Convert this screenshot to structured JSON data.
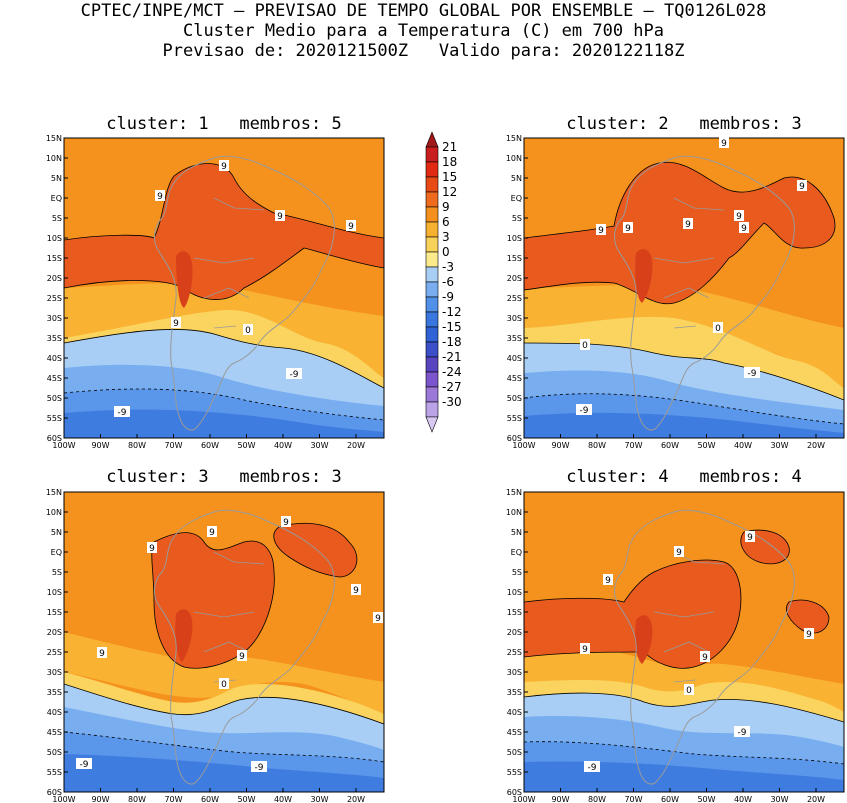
{
  "header": {
    "line1": "CPTEC/INPE/MCT – PREVISAO DE TEMPO GLOBAL POR ENSEMBLE – TQ0126L028",
    "line2": "Cluster Medio para a Temperatura (C) em 700 hPa",
    "line3": "Previsao de: 2020121500Z   Valido para: 2020122118Z"
  },
  "axes": {
    "lat_labels": [
      "15N",
      "10N",
      "5N",
      "EQ",
      "5S",
      "10S",
      "15S",
      "20S",
      "25S",
      "30S",
      "35S",
      "40S",
      "45S",
      "50S",
      "55S",
      "60S"
    ],
    "lon_labels": [
      "100W",
      "90W",
      "80W",
      "70W",
      "60W",
      "50W",
      "40W",
      "30W",
      "20W"
    ]
  },
  "colorbar": {
    "labels": [
      "21",
      "18",
      "15",
      "12",
      "9",
      "6",
      "3",
      "0",
      "-3",
      "-6",
      "-9",
      "-12",
      "-15",
      "-18",
      "-21",
      "-24",
      "-27",
      "-30"
    ],
    "colors": [
      "#a01818",
      "#c81e1e",
      "#e02a14",
      "#e84a16",
      "#f06a1e",
      "#f5901e",
      "#f7b030",
      "#f9d25a",
      "#fbeb8c",
      "#a8cef5",
      "#78aef0",
      "#5090e8",
      "#3a76df",
      "#2e62d6",
      "#3b4fc8",
      "#5844c0",
      "#7a55cc",
      "#9c78d8",
      "#bca2e6",
      "#d8c8f2"
    ]
  },
  "panels": [
    {
      "title": "cluster: 1   membros: 5",
      "contour_labels": [
        "9",
        "9",
        "9",
        "9",
        "9",
        "0",
        "-9",
        "-9"
      ]
    },
    {
      "title": "cluster: 2   membros: 3",
      "contour_labels": [
        "9",
        "9",
        "9",
        "9",
        "9",
        "9",
        "9",
        "0",
        "0",
        "-9",
        "-9"
      ]
    },
    {
      "title": "cluster: 3   membros: 3",
      "contour_labels": [
        "9",
        "9",
        "9",
        "9",
        "9",
        "9",
        "9",
        "0",
        "-9",
        "-9"
      ]
    },
    {
      "title": "cluster: 4   membros: 4",
      "contour_labels": [
        "9",
        "9",
        "9",
        "9",
        "9",
        "9",
        "0",
        "-9",
        "-9"
      ]
    }
  ]
}
